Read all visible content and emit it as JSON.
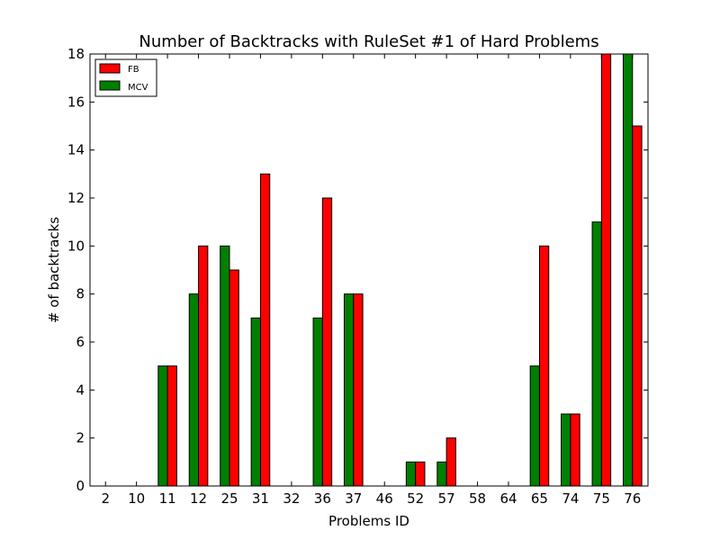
{
  "chart_data": {
    "type": "bar",
    "title": "Number of Backtracks with RuleSet #1 of Hard Problems",
    "xlabel": "Problems ID",
    "ylabel": "# of backtracks",
    "ylim": [
      0,
      18
    ],
    "yticks": [
      "0",
      "2",
      "4",
      "6",
      "8",
      "10",
      "12",
      "14",
      "16",
      "18"
    ],
    "categories": [
      "2",
      "10",
      "11",
      "12",
      "25",
      "31",
      "32",
      "36",
      "37",
      "46",
      "52",
      "57",
      "58",
      "64",
      "65",
      "74",
      "75",
      "76"
    ],
    "category_label_colors": [
      "#ff0000",
      "#ff0000",
      "#000000",
      "#000000",
      "#000000",
      "#000000",
      "#000000",
      "#000000",
      "#000000",
      "#000000",
      "#000000",
      "#000000",
      "#000000",
      "#000000",
      "#000000",
      "#000000",
      "#000000",
      "#000000"
    ],
    "series": [
      {
        "name": "FB",
        "color": "#ff0000",
        "values": [
          0,
          0,
          5,
          10,
          9,
          13,
          0,
          12,
          8,
          0,
          1,
          2,
          0,
          0,
          10,
          3,
          18,
          15
        ]
      },
      {
        "name": "MCV",
        "color": "#008000",
        "values": [
          0,
          0,
          5,
          8,
          10,
          7,
          0,
          7,
          8,
          0,
          1,
          1,
          0,
          0,
          5,
          3,
          11,
          18
        ]
      }
    ],
    "legend_position": "top-left",
    "grid": false
  }
}
